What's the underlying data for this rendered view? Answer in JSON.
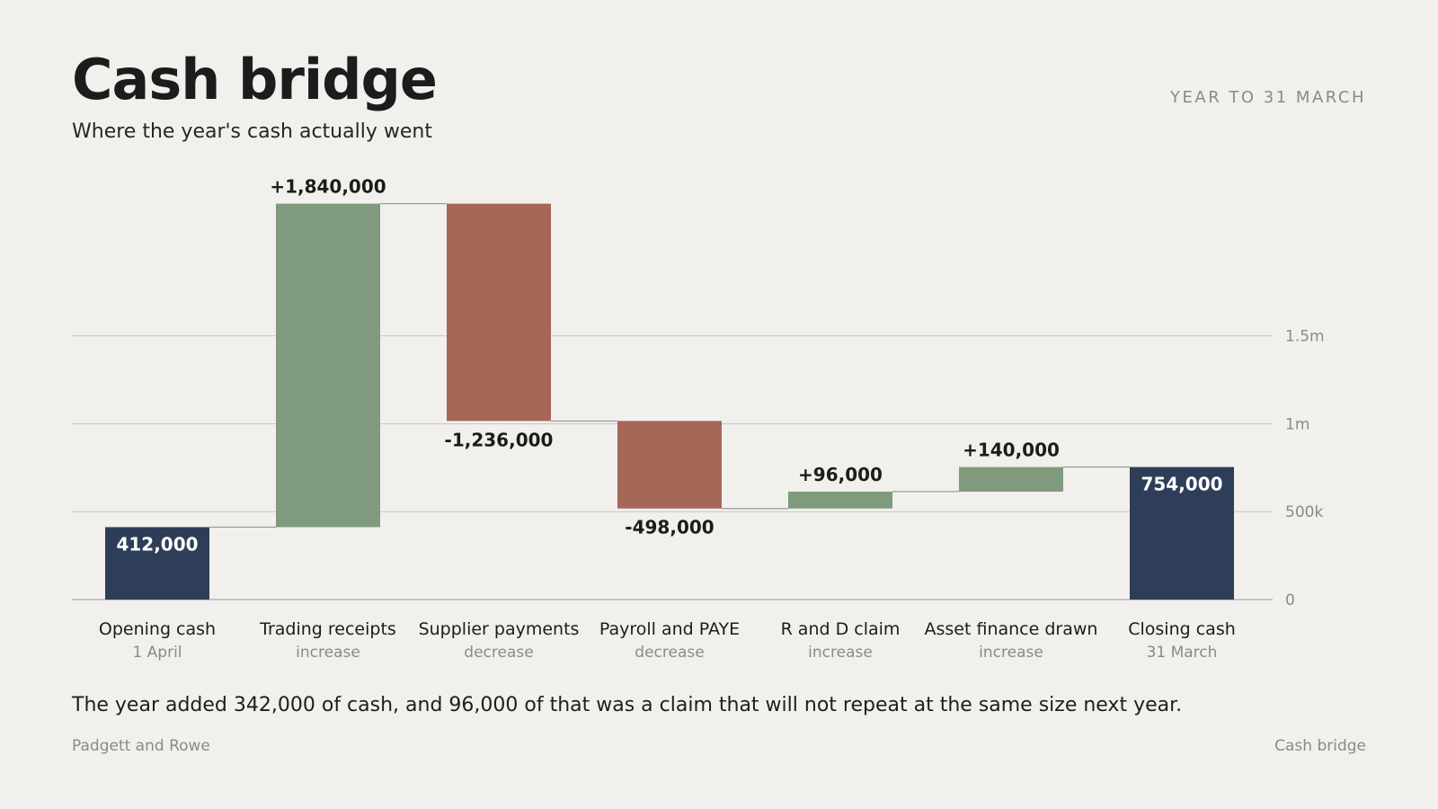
{
  "header": {
    "title": "Cash bridge",
    "subtitle": "Where the year's cash actually went",
    "period": "YEAR TO 31 MARCH"
  },
  "narrative": "The year added 342,000 of cash, and 96,000 of that was a claim that will not repeat at the same size next year.",
  "footer": {
    "left": "Padgett and Rowe",
    "right": "Cash bridge"
  },
  "colors": {
    "total": "#2f3e58",
    "increase": "#7f9a7c",
    "decrease": "#a66658",
    "grid": "#c7c6c1",
    "axis": "#9a9a96",
    "connector": "#8a8a86",
    "tick_label": "#8a8a86"
  },
  "chart_data": {
    "type": "bar",
    "subtype": "waterfall",
    "ylim": [
      0,
      2250000
    ],
    "yticks": [
      {
        "value": 0,
        "label": "0"
      },
      {
        "value": 500000,
        "label": "500k"
      },
      {
        "value": 1000000,
        "label": "1m"
      },
      {
        "value": 1500000,
        "label": "1.5m"
      }
    ],
    "grid": true,
    "steps": [
      {
        "category": "Opening cash",
        "sublabel": "1 April",
        "kind": "total",
        "value": 412000,
        "value_label": "412,000"
      },
      {
        "category": "Trading receipts",
        "sublabel": "increase",
        "kind": "increase",
        "value": 1840000,
        "value_label": "+1,840,000"
      },
      {
        "category": "Supplier payments",
        "sublabel": "decrease",
        "kind": "decrease",
        "value": -1236000,
        "value_label": "-1,236,000"
      },
      {
        "category": "Payroll and PAYE",
        "sublabel": "decrease",
        "kind": "decrease",
        "value": -498000,
        "value_label": "-498,000"
      },
      {
        "category": "R and D claim",
        "sublabel": "increase",
        "kind": "increase",
        "value": 96000,
        "value_label": "+96,000"
      },
      {
        "category": "Asset finance drawn",
        "sublabel": "increase",
        "kind": "increase",
        "value": 140000,
        "value_label": "+140,000"
      },
      {
        "category": "Closing cash",
        "sublabel": "31 March",
        "kind": "total",
        "value": 754000,
        "value_label": "754,000"
      }
    ]
  }
}
